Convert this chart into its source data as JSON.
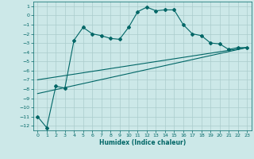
{
  "xlabel": "Humidex (Indice chaleur)",
  "ylabel": "",
  "bg_color": "#cce8e8",
  "grid_color": "#aacccc",
  "line_color": "#006666",
  "xlim": [
    -0.5,
    23.5
  ],
  "ylim": [
    -12.5,
    1.5
  ],
  "xticks": [
    0,
    1,
    2,
    3,
    4,
    5,
    6,
    7,
    8,
    9,
    10,
    11,
    12,
    13,
    14,
    15,
    16,
    17,
    18,
    19,
    20,
    21,
    22,
    23
  ],
  "yticks": [
    1,
    0,
    -1,
    -2,
    -3,
    -4,
    -5,
    -6,
    -7,
    -8,
    -9,
    -10,
    -11,
    -12
  ],
  "main_x": [
    0,
    1,
    2,
    3,
    4,
    5,
    6,
    7,
    8,
    9,
    10,
    11,
    12,
    13,
    14,
    15,
    16,
    17,
    18,
    19,
    20,
    21,
    22,
    23
  ],
  "main_y": [
    -11.0,
    -12.2,
    -7.7,
    -7.9,
    -2.7,
    -1.3,
    -2.0,
    -2.2,
    -2.5,
    -2.6,
    -1.3,
    0.4,
    0.9,
    0.5,
    0.6,
    0.6,
    -1.0,
    -2.0,
    -2.2,
    -3.0,
    -3.1,
    -3.7,
    -3.5,
    -3.5
  ],
  "line2_x": [
    0,
    23
  ],
  "line2_y": [
    -8.5,
    -3.5
  ],
  "line3_x": [
    0,
    23
  ],
  "line3_y": [
    -7.0,
    -3.5
  ],
  "tick_fontsize": 4.5,
  "xlabel_fontsize": 5.5
}
